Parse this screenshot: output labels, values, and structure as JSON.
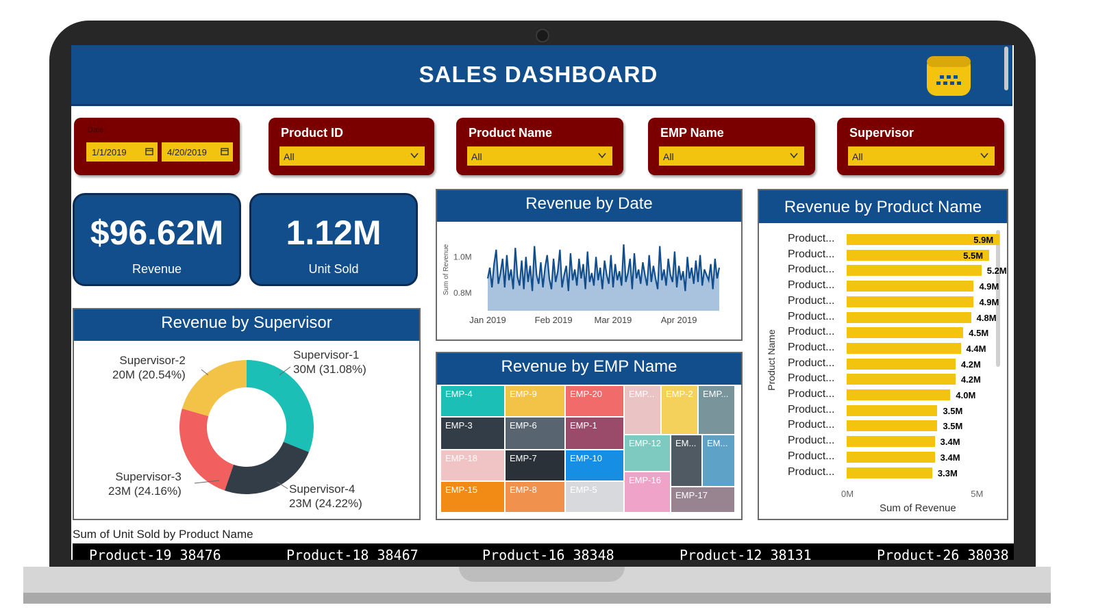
{
  "header": {
    "title": "SALES DASHBOARD"
  },
  "slicers": {
    "date": {
      "label": "Date",
      "start": "1/1/2019",
      "end": "4/20/2019"
    },
    "product_id": {
      "label": "Product ID",
      "value": "All"
    },
    "product_name": {
      "label": "Product Name",
      "value": "All"
    },
    "emp_name": {
      "label": "EMP Name",
      "value": "All"
    },
    "supervisor": {
      "label": "Supervisor",
      "value": "All"
    }
  },
  "kpis": {
    "revenue": {
      "value": "$96.62M",
      "label": "Revenue"
    },
    "units": {
      "value": "1.12M",
      "label": "Unit Sold"
    }
  },
  "supervisor_panel": {
    "title": "Revenue by Supervisor",
    "labels": [
      {
        "name": "Supervisor-1",
        "detail": "30M (31.08%)"
      },
      {
        "name": "Supervisor-2",
        "detail": "20M (20.54%)"
      },
      {
        "name": "Supervisor-3",
        "detail": "23M (24.16%)"
      },
      {
        "name": "Supervisor-4",
        "detail": "23M (24.22%)"
      }
    ]
  },
  "date_panel": {
    "title": "Revenue by Date"
  },
  "emp_panel": {
    "title": "Revenue by EMP Name"
  },
  "product_panel": {
    "title": "Revenue by Product Name"
  },
  "chart_data": [
    {
      "type": "pie",
      "title": "Revenue by Supervisor",
      "categories": [
        "Supervisor-1",
        "Supervisor-4",
        "Supervisor-3",
        "Supervisor-2"
      ],
      "values": [
        30,
        23,
        23,
        20
      ],
      "percents": [
        31.08,
        24.22,
        24.16,
        20.54
      ],
      "colors": [
        "#1cbfb5",
        "#333d47",
        "#f15f5f",
        "#f3c348"
      ],
      "donut": true
    },
    {
      "type": "area",
      "title": "Revenue by Date",
      "ylabel": "Sum of Revenue",
      "y_ticks": [
        "1.0M",
        "0.8M"
      ],
      "x_ticks": [
        "Jan 2019",
        "Feb 2019",
        "Mar 2019",
        "Apr 2019"
      ],
      "y_tick_values": [
        1000000,
        800000
      ],
      "ylim": [
        700000,
        1150000
      ],
      "x_range": [
        "2019-01-01",
        "2019-04-20"
      ],
      "x_tick_dates": [
        "2019-01-01",
        "2019-02-01",
        "2019-03-01",
        "2019-04-01"
      ],
      "values": [
        880000,
        940000,
        830000,
        960000,
        1040000,
        850000,
        910000,
        990000,
        830000,
        1010000,
        870000,
        930000,
        820000,
        1050000,
        890000,
        840000,
        980000,
        820000,
        1000000,
        860000,
        950000,
        810000,
        1060000,
        900000,
        850000,
        970000,
        830000,
        940000,
        1010000,
        880000,
        820000,
        990000,
        860000,
        920000,
        1040000,
        830000,
        900000,
        950000,
        810000,
        1020000,
        870000,
        930000,
        840000,
        990000,
        880000,
        960000,
        820000,
        1030000,
        860000,
        910000,
        840000,
        1000000,
        870000,
        940000,
        820000,
        980000,
        900000,
        850000,
        1010000,
        830000,
        960000,
        870000,
        920000,
        840000,
        1070000,
        860000,
        910000,
        990000,
        820000,
        1020000,
        880000,
        930000,
        850000,
        970000,
        900000,
        840000,
        1010000,
        860000,
        950000,
        880000,
        820000,
        1060000,
        870000,
        930000,
        840000,
        990000,
        900000,
        860000,
        1030000,
        830000,
        950000,
        870000,
        920000,
        810000,
        1000000,
        880000,
        940000,
        850000,
        980000,
        860000,
        1010000,
        840000,
        930000,
        900000,
        870000,
        960000,
        820000,
        990000,
        880000,
        940000
      ],
      "color": "#124e8c"
    },
    {
      "type": "treemap",
      "title": "Revenue by EMP Name",
      "tiles": [
        {
          "name": "EMP-4",
          "color": "#1cbfb5"
        },
        {
          "name": "EMP-9",
          "color": "#f3c348"
        },
        {
          "name": "EMP-20",
          "color": "#f26b6b"
        },
        {
          "name": "EMP...",
          "color": "#eac4c4"
        },
        {
          "name": "EMP-2",
          "color": "#f3d15b"
        },
        {
          "name": "EMP...",
          "color": "#7a949c"
        },
        {
          "name": "EMP-3",
          "color": "#333d47"
        },
        {
          "name": "EMP-6",
          "color": "#586570"
        },
        {
          "name": "EMP-1",
          "color": "#9b4b6a"
        },
        {
          "name": "EMP-12",
          "color": "#7ecac0"
        },
        {
          "name": "EM...",
          "color": "#4f5a63"
        },
        {
          "name": "EM...",
          "color": "#5fa2c8"
        },
        {
          "name": "EMP-18",
          "color": "#f0c4c4"
        },
        {
          "name": "EMP-7",
          "color": "#2a3139"
        },
        {
          "name": "EMP-10",
          "color": "#168ee3"
        },
        {
          "name": "EMP-16",
          "color": "#f0a3c8"
        },
        {
          "name": "EMP-17",
          "color": "#978490"
        },
        {
          "name": "EMP-15",
          "color": "#f28a16"
        },
        {
          "name": "EMP-8",
          "color": "#f0924d"
        },
        {
          "name": "EMP-5",
          "color": "#d7d9dc"
        }
      ]
    },
    {
      "type": "bar",
      "orientation": "horizontal",
      "title": "Revenue by Product Name",
      "xlabel": "Sum of Revenue",
      "ylabel": "Product Name",
      "x_ticks": [
        "0M",
        "5M"
      ],
      "xlim": [
        0,
        6500000
      ],
      "categories": [
        "Product...",
        "Product...",
        "Product...",
        "Product...",
        "Product...",
        "Product...",
        "Product...",
        "Product...",
        "Product...",
        "Product...",
        "Product...",
        "Product...",
        "Product...",
        "Product...",
        "Product...",
        "Product..."
      ],
      "values": [
        5900000,
        5500000,
        5200000,
        4900000,
        4900000,
        4800000,
        4500000,
        4400000,
        4200000,
        4200000,
        4000000,
        3500000,
        3500000,
        3400000,
        3400000,
        3300000
      ],
      "value_labels": [
        "5.9M",
        "5.5M",
        "5.2M",
        "4.9M",
        "4.9M",
        "4.8M",
        "4.5M",
        "4.4M",
        "4.2M",
        "4.2M",
        "4.0M",
        "3.5M",
        "3.5M",
        "3.4M",
        "3.4M",
        "3.3M"
      ],
      "color": "#f2c40f"
    }
  ],
  "ticker": {
    "caption": "Sum of Unit Sold by Product Name",
    "items": [
      "Product-19  38476",
      "Product-18  38467",
      "Product-16  38348",
      "Product-12  38131",
      "Product-26  38038"
    ]
  }
}
